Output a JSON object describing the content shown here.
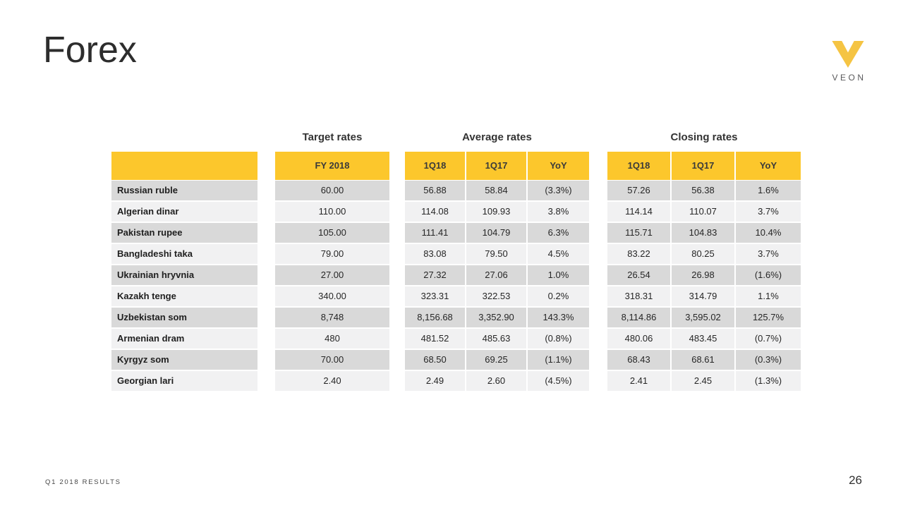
{
  "slide": {
    "title": "Forex",
    "footer_left": "Q1 2018 RESULTS",
    "page_number": "26",
    "logo_text": "VEON"
  },
  "colors": {
    "header_yellow": "#FCC72C",
    "logo_yellow": "#F5C443",
    "row_dark": "#D9D9D9",
    "row_light": "#F1F1F2",
    "text_dark": "#262626"
  },
  "table": {
    "group_headers": [
      {
        "title": "Target rates",
        "columns": [
          "FY 2018"
        ]
      },
      {
        "title": "Average rates",
        "columns": [
          "1Q18",
          "1Q17",
          "YoY"
        ]
      },
      {
        "title": "Closing rates",
        "columns": [
          "1Q18",
          "1Q17",
          "YoY"
        ]
      }
    ],
    "rows": [
      {
        "label": "Russian ruble",
        "values": [
          "60.00",
          "56.88",
          "58.84",
          "(3.3%)",
          "57.26",
          "56.38",
          "1.6%"
        ]
      },
      {
        "label": "Algerian dinar",
        "values": [
          "110.00",
          "114.08",
          "109.93",
          "3.8%",
          "114.14",
          "110.07",
          "3.7%"
        ]
      },
      {
        "label": "Pakistan rupee",
        "values": [
          "105.00",
          "111.41",
          "104.79",
          "6.3%",
          "115.71",
          "104.83",
          "10.4%"
        ]
      },
      {
        "label": "Bangladeshi taka",
        "values": [
          "79.00",
          "83.08",
          "79.50",
          "4.5%",
          "83.22",
          "80.25",
          "3.7%"
        ]
      },
      {
        "label": "Ukrainian hryvnia",
        "values": [
          "27.00",
          "27.32",
          "27.06",
          "1.0%",
          "26.54",
          "26.98",
          "(1.6%)"
        ]
      },
      {
        "label": "Kazakh tenge",
        "values": [
          "340.00",
          "323.31",
          "322.53",
          "0.2%",
          "318.31",
          "314.79",
          "1.1%"
        ]
      },
      {
        "label": "Uzbekistan som",
        "values": [
          "8,748",
          "8,156.68",
          "3,352.90",
          "143.3%",
          "8,114.86",
          "3,595.02",
          "125.7%"
        ]
      },
      {
        "label": "Armenian dram",
        "values": [
          "480",
          "481.52",
          "485.63",
          "(0.8%)",
          "480.06",
          "483.45",
          "(0.7%)"
        ]
      },
      {
        "label": "Kyrgyz som",
        "values": [
          "70.00",
          "68.50",
          "69.25",
          "(1.1%)",
          "68.43",
          "68.61",
          "(0.3%)"
        ]
      },
      {
        "label": "Georgian lari",
        "values": [
          "2.40",
          "2.49",
          "2.60",
          "(4.5%)",
          "2.41",
          "2.45",
          "(1.3%)"
        ]
      }
    ]
  }
}
